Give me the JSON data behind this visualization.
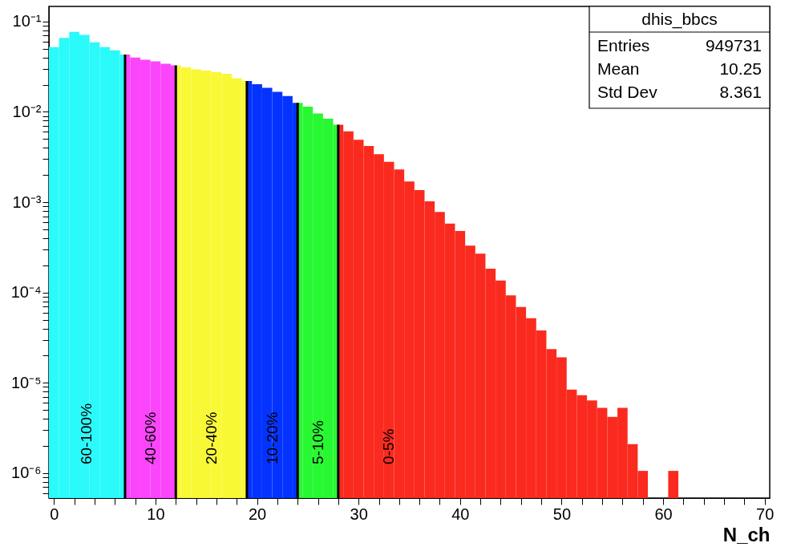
{
  "chart_data": {
    "type": "histogram",
    "xlabel": "N_ch",
    "annotations": [
      "dhis_bbcs",
      "Entries",
      "949731",
      "Mean",
      "10.25",
      "Std Dev",
      "8.361",
      "60-100%",
      "40-60%",
      "20-40%",
      "10-20%",
      "5-10%",
      "0-5%"
    ],
    "xlim": [
      -0.5,
      70.5
    ],
    "ylim": [
      5.3e-07,
      0.147
    ],
    "log": "y",
    "grid": false,
    "xticks": [
      0,
      {
        "value": 2,
        "label": null
      },
      {
        "value": 4,
        "label": null
      },
      {
        "value": 6,
        "label": null
      },
      {
        "value": 8,
        "label": null
      },
      10,
      {
        "value": 12,
        "label": null
      },
      {
        "value": 14,
        "label": null
      },
      {
        "value": 16,
        "label": null
      },
      {
        "value": 18,
        "label": null
      },
      20,
      {
        "value": 22,
        "label": null
      },
      {
        "value": 24,
        "label": null
      },
      {
        "value": 26,
        "label": null
      },
      {
        "value": 28,
        "label": null
      },
      30,
      {
        "value": 32,
        "label": null
      },
      {
        "value": 34,
        "label": null
      },
      {
        "value": 36,
        "label": null
      },
      {
        "value": 38,
        "label": null
      },
      40,
      {
        "value": 42,
        "label": null
      },
      {
        "value": 44,
        "label": null
      },
      {
        "value": 46,
        "label": null
      },
      {
        "value": 48,
        "label": null
      },
      50,
      {
        "value": 52,
        "label": null
      },
      {
        "value": 54,
        "label": null
      },
      {
        "value": 56,
        "label": null
      },
      {
        "value": 58,
        "label": null
      },
      60,
      {
        "value": 62,
        "label": null
      },
      {
        "value": 64,
        "label": null
      },
      {
        "value": 66,
        "label": null
      },
      {
        "value": 68,
        "label": null
      },
      70
    ],
    "yticks": [
      {
        "value": 6e-07,
        "label": null
      },
      {
        "value": 7e-07,
        "label": null
      },
      {
        "value": 8e-07,
        "label": null
      },
      {
        "value": 9e-07,
        "label": null
      },
      {
        "value": 1e-06,
        "label": "10⁻⁶"
      },
      {
        "value": 2e-06,
        "label": null
      },
      {
        "value": 3e-06,
        "label": null
      },
      {
        "value": 4e-06,
        "label": null
      },
      {
        "value": 5e-06,
        "label": null
      },
      {
        "value": 6e-06,
        "label": null
      },
      {
        "value": 7e-06,
        "label": null
      },
      {
        "value": 8e-06,
        "label": null
      },
      {
        "value": 9e-06,
        "label": null
      },
      {
        "value": 1e-05,
        "label": "10⁻⁵"
      },
      {
        "value": 2e-05,
        "label": null
      },
      {
        "value": 3e-05,
        "label": null
      },
      {
        "value": 4e-05,
        "label": null
      },
      {
        "value": 5e-05,
        "label": null
      },
      {
        "value": 6e-05,
        "label": null
      },
      {
        "value": 7e-05,
        "label": null
      },
      {
        "value": 8e-05,
        "label": null
      },
      {
        "value": 9e-05,
        "label": null
      },
      {
        "value": 0.0001,
        "label": "10⁻⁴"
      },
      {
        "value": 0.0002,
        "label": null
      },
      {
        "value": 0.0003,
        "label": null
      },
      {
        "value": 0.0004,
        "label": null
      },
      {
        "value": 0.0005,
        "label": null
      },
      {
        "value": 0.0006,
        "label": null
      },
      {
        "value": 0.0007,
        "label": null
      },
      {
        "value": 0.0008,
        "label": null
      },
      {
        "value": 0.0009,
        "label": null
      },
      {
        "value": 0.001,
        "label": "10⁻³"
      },
      {
        "value": 0.002,
        "label": null
      },
      {
        "value": 0.003,
        "label": null
      },
      {
        "value": 0.004,
        "label": null
      },
      {
        "value": 0.005,
        "label": null
      },
      {
        "value": 0.006,
        "label": null
      },
      {
        "value": 0.007,
        "label": null
      },
      {
        "value": 0.008,
        "label": null
      },
      {
        "value": 0.009,
        "label": null
      },
      {
        "value": 0.01,
        "label": "10⁻²"
      },
      {
        "value": 0.02,
        "label": null
      },
      {
        "value": 0.03,
        "label": null
      },
      {
        "value": 0.04,
        "label": null
      },
      {
        "value": 0.05,
        "label": null
      },
      {
        "value": 0.06,
        "label": null
      },
      {
        "value": 0.07,
        "label": null
      },
      {
        "value": 0.08,
        "label": null
      },
      {
        "value": 0.09,
        "label": null
      },
      {
        "value": 0.1,
        "label": "10⁻¹"
      }
    ],
    "bins": [
      -0.5,
      0.5,
      1.5,
      2.5,
      3.5,
      4.5,
      5.5,
      6.5,
      7,
      7.5,
      8.5,
      9.5,
      10.5,
      11.5,
      12,
      12.5,
      13.5,
      14.5,
      15.5,
      16.5,
      17.5,
      18.5,
      19,
      19.5,
      20.5,
      21.5,
      22.5,
      23.5,
      24,
      24.5,
      25.5,
      26.5,
      27.5,
      28,
      28.5,
      29.5,
      30.5,
      31.5,
      32.5,
      33.5,
      34.5,
      35.5,
      36.5,
      37.5,
      38.5,
      39.5,
      40.5,
      41.5,
      42.5,
      43.5,
      44.5,
      45.5,
      46.5,
      47.5,
      48.5,
      49.5,
      50.5,
      51.5,
      52.5,
      53.5,
      54.5,
      55.5,
      56.5,
      57.5,
      58.5,
      60.5,
      61.5
    ],
    "values": [
      0.052,
      0.066,
      0.077,
      0.071,
      0.059,
      0.052,
      0.048,
      0.043,
      0.043,
      0.04,
      0.0377,
      0.0362,
      0.034,
      0.0327,
      0.0327,
      0.0311,
      0.0296,
      0.0286,
      0.0275,
      0.0264,
      0.0236,
      0.022,
      0.022,
      0.0202,
      0.0185,
      0.0167,
      0.015,
      0.0126,
      0.0126,
      0.0114,
      0.0096,
      0.0084,
      0.0072,
      0.0072,
      0.0061,
      0.0049,
      0.0042,
      0.0034,
      0.0028,
      0.0023,
      0.0017,
      0.00136,
      0.00102,
      0.00078,
      0.00058,
      0.00048,
      0.00033,
      0.00027,
      0.000184,
      0.000136,
      9.3e-05,
      6.9e-05,
      5.2e-05,
      3.8e-05,
      2.36e-05,
      1.92e-05,
      8.4e-06,
      7.3e-06,
      6.4e-06,
      5.3e-06,
      4.2e-06,
      5.3e-06,
      2.1e-06,
      1.06e-06,
      null,
      1.06e-06
    ],
    "colors": [
      "#2afafa",
      "#2afafa",
      "#2afafa",
      "#2afafa",
      "#2afafa",
      "#2afafa",
      "#2afafa",
      "#2afafa",
      "#fb45fb",
      "#fb45fb",
      "#fb45fb",
      "#fb45fb",
      "#fb45fb",
      "#fb45fb",
      "#f8f835",
      "#f8f835",
      "#f8f835",
      "#f8f835",
      "#f8f835",
      "#f8f835",
      "#f8f835",
      "#f8f835",
      "#0433ff",
      "#0433ff",
      "#0433ff",
      "#0433ff",
      "#0433ff",
      "#0433ff",
      "#28f831",
      "#28f831",
      "#28f831",
      "#28f831",
      "#28f831",
      "#fb2a1f",
      "#fb2a1f",
      "#fb2a1f",
      "#fb2a1f",
      "#fb2a1f",
      "#fb2a1f",
      "#fb2a1f",
      "#fb2a1f",
      "#fb2a1f",
      "#fb2a1f",
      "#fb2a1f",
      "#fb2a1f",
      "#fb2a1f",
      "#fb2a1f",
      "#fb2a1f",
      "#fb2a1f",
      "#fb2a1f",
      "#fb2a1f",
      "#fb2a1f",
      "#fb2a1f",
      "#fb2a1f",
      "#fb2a1f",
      "#fb2a1f",
      "#fb2a1f",
      "#fb2a1f",
      "#fb2a1f",
      "#fb2a1f",
      "#fb2a1f",
      "#fb2a1f",
      "#fb2a1f",
      "#fb2a1f",
      null,
      "#fb2a1f"
    ],
    "ref_lines": [
      {
        "axis": "x",
        "value": 7,
        "color": "#000000"
      },
      {
        "axis": "x",
        "value": 12,
        "color": "#000000"
      },
      {
        "axis": "x",
        "value": 19,
        "color": "#000000"
      },
      {
        "axis": "x",
        "value": 24,
        "color": "#000000"
      },
      {
        "axis": "x",
        "value": 28,
        "color": "#000000"
      }
    ]
  }
}
